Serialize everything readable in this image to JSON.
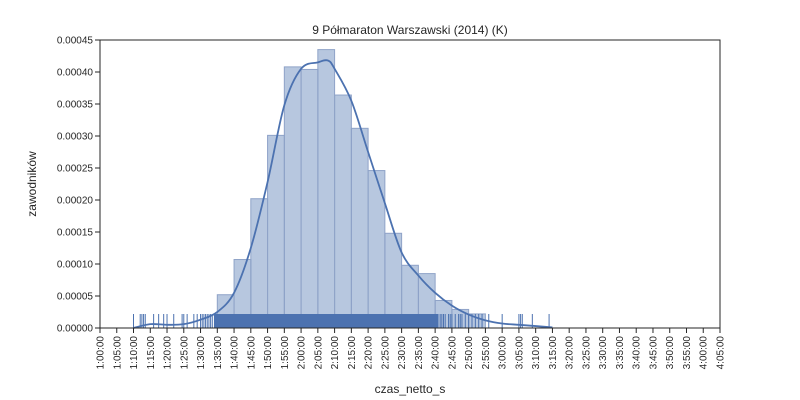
{
  "chart_data": {
    "type": "bar",
    "title": "9 Półmaraton Warszawski (2014) (K)",
    "xlabel": "czas_netto_s",
    "ylabel": "zawodników",
    "x_unit": "h:mm:ss",
    "xlim": [
      "1:00:00",
      "4:05:00"
    ],
    "ylim": [
      0,
      0.00045
    ],
    "yticks": [
      "0.00000",
      "0.00005",
      "0.00010",
      "0.00015",
      "0.00020",
      "0.00025",
      "0.00030",
      "0.00035",
      "0.00040",
      "0.00045"
    ],
    "xticks": [
      "1:00:00",
      "1:05:00",
      "1:10:00",
      "1:15:00",
      "1:20:00",
      "1:25:00",
      "1:30:00",
      "1:35:00",
      "1:40:00",
      "1:45:00",
      "1:50:00",
      "1:55:00",
      "2:00:00",
      "2:05:00",
      "2:10:00",
      "2:15:00",
      "2:20:00",
      "2:25:00",
      "2:30:00",
      "2:35:00",
      "2:40:00",
      "2:45:00",
      "2:50:00",
      "2:55:00",
      "3:00:00",
      "3:05:00",
      "3:10:00",
      "3:15:00",
      "3:20:00",
      "3:25:00",
      "3:30:00",
      "3:35:00",
      "3:40:00",
      "3:45:00",
      "3:50:00",
      "3:55:00",
      "4:00:00",
      "4:05:00"
    ],
    "grid": false,
    "colors": {
      "bar_fill": "#4c72b0",
      "bar_edge": "#8fa3c8",
      "kde": "#4c72b0",
      "rug": "#4c72b0",
      "axis": "#262626"
    },
    "histogram": {
      "bins": [
        {
          "start": "1:35:00",
          "end": "1:40:00",
          "density": 5.2e-05
        },
        {
          "start": "1:40:00",
          "end": "1:45:00",
          "density": 0.000107
        },
        {
          "start": "1:45:00",
          "end": "1:50:00",
          "density": 0.000202
        },
        {
          "start": "1:50:00",
          "end": "1:55:00",
          "density": 0.000301
        },
        {
          "start": "1:55:00",
          "end": "2:00:00",
          "density": 0.000408
        },
        {
          "start": "2:00:00",
          "end": "2:05:00",
          "density": 0.000404
        },
        {
          "start": "2:05:00",
          "end": "2:10:00",
          "density": 0.000435
        },
        {
          "start": "2:10:00",
          "end": "2:15:00",
          "density": 0.000364
        },
        {
          "start": "2:15:00",
          "end": "2:20:00",
          "density": 0.000312
        },
        {
          "start": "2:20:00",
          "end": "2:25:00",
          "density": 0.000246
        },
        {
          "start": "2:25:00",
          "end": "2:30:00",
          "density": 0.000148
        },
        {
          "start": "2:30:00",
          "end": "2:35:00",
          "density": 9.8e-05
        },
        {
          "start": "2:35:00",
          "end": "2:40:00",
          "density": 8.5e-05
        },
        {
          "start": "2:40:00",
          "end": "2:45:00",
          "density": 4.3e-05
        },
        {
          "start": "2:45:00",
          "end": "2:50:00",
          "density": 2.9e-05
        },
        {
          "start": "2:50:00",
          "end": "2:55:00",
          "density": 2.2e-05
        }
      ]
    },
    "kde": {
      "x": [
        "1:10:00",
        "1:15:00",
        "1:20:00",
        "1:25:00",
        "1:30:00",
        "1:35:00",
        "1:40:00",
        "1:45:00",
        "1:50:00",
        "1:55:00",
        "2:00:00",
        "2:05:00",
        "2:08:00",
        "2:10:00",
        "2:15:00",
        "2:20:00",
        "2:25:00",
        "2:30:00",
        "2:35:00",
        "2:40:00",
        "2:45:00",
        "2:50:00",
        "2:55:00",
        "3:00:00",
        "3:05:00",
        "3:10:00",
        "3:15:00"
      ],
      "y": [
        0.0,
        6e-06,
        5e-06,
        6e-06,
        1.3e-05,
        2.5e-05,
        5.5e-05,
        0.000125,
        0.000228,
        0.000348,
        0.000405,
        0.000415,
        0.000418,
        0.000405,
        0.000355,
        0.000275,
        0.000195,
        0.000118,
        8.2e-05,
        5.5e-05,
        3.5e-05,
        2.1e-05,
        1.2e-05,
        7e-06,
        5e-06,
        3e-06,
        1e-06
      ]
    },
    "rug": {
      "dense_range": [
        "1:34:00",
        "2:41:00"
      ],
      "sparse": [
        "1:10:00",
        "1:12:00",
        "1:12:30",
        "1:13:00",
        "1:13:30",
        "1:16:00",
        "1:17:30",
        "1:19:00",
        "1:20:00",
        "1:22:00",
        "1:24:30",
        "1:25:00",
        "1:26:00",
        "1:28:00",
        "1:29:00",
        "1:30:00",
        "1:30:30",
        "1:31:00",
        "1:31:30",
        "1:32:00",
        "1:32:30",
        "1:33:00",
        "1:33:30",
        "2:41:30",
        "2:42:00",
        "2:42:30",
        "2:43:00",
        "2:44:00",
        "2:44:30",
        "2:45:00",
        "2:46:00",
        "2:47:00",
        "2:47:30",
        "2:48:00",
        "2:49:00",
        "2:50:00",
        "2:51:00",
        "2:52:00",
        "2:53:00",
        "2:54:00",
        "2:56:00",
        "3:00:00",
        "3:05:00",
        "3:05:30",
        "3:06:00",
        "3:09:00",
        "3:14:00"
      ]
    }
  }
}
